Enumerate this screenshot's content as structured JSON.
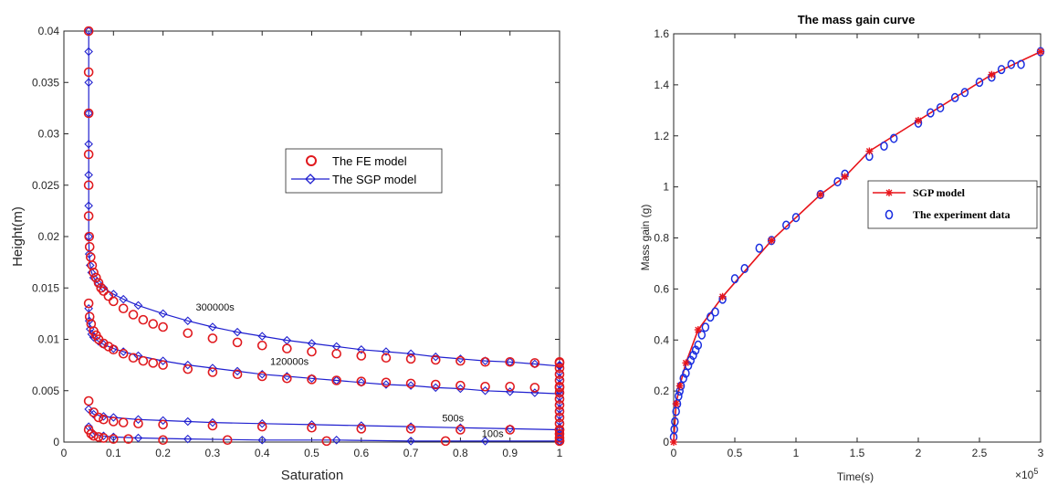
{
  "chart_data": [
    {
      "type": "line",
      "title": "",
      "xlabel": "Saturation",
      "ylabel": "Height(m)",
      "xlim": [
        0,
        1
      ],
      "ylim": [
        0,
        0.04
      ],
      "xticks": [
        "0",
        "0.1",
        "0.2",
        "0.3",
        "0.4",
        "0.5",
        "0.6",
        "0.7",
        "0.8",
        "0.9",
        "1"
      ],
      "yticks": [
        "0",
        "0.005",
        "0.01",
        "0.015",
        "0.02",
        "0.025",
        "0.03",
        "0.035",
        "0.04"
      ],
      "grid": false,
      "legend": {
        "position": "center-right",
        "entries": [
          "The FE model",
          "The SGP model"
        ]
      },
      "annotations": [
        {
          "text": "300000s",
          "x": 0.305,
          "y": 0.0128
        },
        {
          "text": "120000s",
          "x": 0.455,
          "y": 0.0075
        },
        {
          "text": "500s",
          "x": 0.785,
          "y": 0.002
        },
        {
          "text": "100s",
          "x": 0.865,
          "y": 0.0005
        }
      ],
      "series": [
        {
          "name": "The FE model",
          "color": "#e0191e",
          "marker": "circle",
          "curves": [
            {
              "x": [
                0.05,
                0.05,
                0.05,
                0.05,
                0.05,
                0.05,
                0.051,
                0.052,
                0.054,
                0.057,
                0.06,
                0.065,
                0.07,
                0.075,
                0.08,
                0.09,
                0.1,
                0.12,
                0.14,
                0.16,
                0.18,
                0.2,
                0.25,
                0.3,
                0.35,
                0.4,
                0.45,
                0.5,
                0.55,
                0.6,
                0.65,
                0.7,
                0.75,
                0.8,
                0.85,
                0.9,
                0.95,
                1.0
              ],
              "y": [
                0.04,
                0.036,
                0.032,
                0.028,
                0.025,
                0.022,
                0.02,
                0.019,
                0.018,
                0.0172,
                0.0165,
                0.016,
                0.0155,
                0.015,
                0.0147,
                0.0142,
                0.0137,
                0.013,
                0.0124,
                0.0119,
                0.0115,
                0.0112,
                0.0106,
                0.0101,
                0.0097,
                0.0094,
                0.0091,
                0.0088,
                0.0086,
                0.0084,
                0.0082,
                0.0081,
                0.008,
                0.0079,
                0.0078,
                0.0078,
                0.0077,
                0.0077
              ]
            },
            {
              "x": [
                0.05,
                0.052,
                0.055,
                0.06,
                0.065,
                0.07,
                0.08,
                0.09,
                0.1,
                0.12,
                0.14,
                0.16,
                0.18,
                0.2,
                0.25,
                0.3,
                0.35,
                0.4,
                0.45,
                0.5,
                0.55,
                0.6,
                0.65,
                0.7,
                0.75,
                0.8,
                0.85,
                0.9,
                0.95,
                1.0
              ],
              "y": [
                0.0135,
                0.0122,
                0.0115,
                0.0108,
                0.0104,
                0.01,
                0.0096,
                0.0093,
                0.009,
                0.0086,
                0.0082,
                0.0079,
                0.0077,
                0.0075,
                0.0071,
                0.0068,
                0.0066,
                0.0064,
                0.0062,
                0.0061,
                0.006,
                0.0059,
                0.0058,
                0.0057,
                0.0056,
                0.0055,
                0.0054,
                0.0054,
                0.0053,
                0.0053
              ]
            },
            {
              "x": [
                0.05,
                0.06,
                0.07,
                0.08,
                0.1,
                0.12,
                0.15,
                0.2,
                0.3,
                0.4,
                0.5,
                0.6,
                0.7,
                0.8,
                0.9,
                1.0
              ],
              "y": [
                0.004,
                0.0029,
                0.0024,
                0.0022,
                0.002,
                0.0019,
                0.0018,
                0.0017,
                0.0016,
                0.0015,
                0.0014,
                0.0013,
                0.0013,
                0.0012,
                0.0012,
                0.0012
              ]
            },
            {
              "x": [
                0.05,
                0.055,
                0.06,
                0.07,
                0.08,
                0.1,
                0.13,
                0.2,
                0.33,
                0.53,
                0.77,
                1.0
              ],
              "y": [
                0.0012,
                0.0008,
                0.0006,
                0.0005,
                0.0004,
                0.0003,
                0.0003,
                0.0002,
                0.0002,
                0.0001,
                0.0001,
                0.0001
              ]
            },
            {
              "x": [
                1,
                1,
                1,
                1,
                1,
                1,
                1,
                1,
                1,
                1,
                1,
                1,
                1,
                1,
                1
              ],
              "y": [
                0.0078,
                0.0072,
                0.0066,
                0.006,
                0.0054,
                0.0048,
                0.0042,
                0.0036,
                0.003,
                0.0024,
                0.0018,
                0.0012,
                0.0008,
                0.0004,
                0.0001
              ]
            }
          ]
        },
        {
          "name": "The SGP model",
          "color": "#1f1fcf",
          "marker": "diamond",
          "curves": [
            {
              "x": [
                0.05,
                0.05,
                0.05,
                0.05,
                0.05,
                0.05,
                0.05,
                0.05,
                0.051,
                0.053,
                0.056,
                0.06,
                0.07,
                0.08,
                0.1,
                0.12,
                0.15,
                0.2,
                0.25,
                0.3,
                0.35,
                0.4,
                0.45,
                0.5,
                0.55,
                0.6,
                0.65,
                0.7,
                0.75,
                0.8,
                0.85,
                0.9,
                0.95,
                1.0
              ],
              "y": [
                0.04,
                0.038,
                0.035,
                0.032,
                0.029,
                0.026,
                0.023,
                0.02,
                0.0183,
                0.0172,
                0.0165,
                0.016,
                0.0154,
                0.015,
                0.0144,
                0.0139,
                0.0133,
                0.0125,
                0.0118,
                0.0112,
                0.0107,
                0.0103,
                0.0099,
                0.0096,
                0.0093,
                0.009,
                0.0088,
                0.0086,
                0.0083,
                0.0081,
                0.0079,
                0.0078,
                0.0076,
                0.0074
              ]
            },
            {
              "x": [
                0.05,
                0.051,
                0.053,
                0.056,
                0.06,
                0.07,
                0.08,
                0.1,
                0.12,
                0.15,
                0.2,
                0.25,
                0.3,
                0.35,
                0.4,
                0.45,
                0.5,
                0.55,
                0.6,
                0.65,
                0.7,
                0.75,
                0.8,
                0.85,
                0.9,
                0.95,
                1.0
              ],
              "y": [
                0.013,
                0.0118,
                0.011,
                0.0105,
                0.0102,
                0.0098,
                0.0095,
                0.0091,
                0.0088,
                0.0084,
                0.0079,
                0.0075,
                0.0072,
                0.0069,
                0.0066,
                0.0064,
                0.0062,
                0.006,
                0.0058,
                0.0056,
                0.0055,
                0.0053,
                0.0052,
                0.005,
                0.0049,
                0.0048,
                0.0047
              ]
            },
            {
              "x": [
                0.05,
                0.06,
                0.08,
                0.1,
                0.15,
                0.2,
                0.25,
                0.3,
                0.4,
                0.5,
                0.6,
                0.7,
                0.8,
                0.9,
                1.0
              ],
              "y": [
                0.0032,
                0.0027,
                0.0025,
                0.0024,
                0.0022,
                0.0021,
                0.002,
                0.0019,
                0.0018,
                0.0017,
                0.0016,
                0.0015,
                0.0014,
                0.0013,
                0.0012
              ]
            },
            {
              "x": [
                0.05,
                0.06,
                0.08,
                0.1,
                0.15,
                0.25,
                0.4,
                0.55,
                0.7,
                0.85,
                1.0
              ],
              "y": [
                0.0015,
                0.0008,
                0.0006,
                0.0005,
                0.0004,
                0.0003,
                0.0002,
                0.0002,
                0.0001,
                0.0001,
                0.0001
              ]
            },
            {
              "x": [
                1,
                1,
                1,
                1,
                1,
                1,
                1,
                1,
                1,
                1,
                1,
                1,
                1,
                1
              ],
              "y": [
                0.0075,
                0.0068,
                0.0062,
                0.0056,
                0.005,
                0.0044,
                0.0038,
                0.0032,
                0.0026,
                0.002,
                0.0014,
                0.0008,
                0.0004,
                0.0001
              ]
            }
          ]
        }
      ]
    },
    {
      "type": "line",
      "title": "The mass gain curve",
      "xlabel": "Time(s)",
      "ylabel": "Mass gain (g)",
      "x_multiplier": "×10",
      "x_multiplier_exp": "5",
      "xlim": [
        0,
        3
      ],
      "ylim": [
        0,
        1.6
      ],
      "xticks": [
        "0",
        "0.5",
        "1",
        "1.5",
        "2",
        "2.5",
        "3"
      ],
      "yticks": [
        "0",
        "0.2",
        "0.4",
        "0.6",
        "0.8",
        "1",
        "1.2",
        "1.4",
        "1.6"
      ],
      "grid": false,
      "legend": {
        "position": "right",
        "entries": [
          "SGP model",
          "The experiment data"
        ]
      },
      "series": [
        {
          "name": "SGP model",
          "color": "#e8141a",
          "marker": "star",
          "x": [
            0,
            0.02,
            0.05,
            0.1,
            0.2,
            0.4,
            0.8,
            1.2,
            1.4,
            1.6,
            2.0,
            2.6,
            3.0
          ],
          "y": [
            0,
            0.15,
            0.22,
            0.31,
            0.44,
            0.57,
            0.79,
            0.97,
            1.04,
            1.14,
            1.26,
            1.44,
            1.53
          ]
        },
        {
          "name": "The experiment data",
          "color": "#1a2ee0",
          "marker": "circle",
          "x": [
            0,
            0.005,
            0.01,
            0.02,
            0.03,
            0.04,
            0.05,
            0.06,
            0.08,
            0.1,
            0.12,
            0.14,
            0.16,
            0.18,
            0.2,
            0.23,
            0.26,
            0.3,
            0.34,
            0.4,
            0.5,
            0.58,
            0.7,
            0.8,
            0.92,
            1.0,
            1.2,
            1.34,
            1.4,
            1.6,
            1.72,
            1.8,
            2.0,
            2.1,
            2.18,
            2.3,
            2.38,
            2.5,
            2.6,
            2.68,
            2.76,
            2.84,
            3.0
          ],
          "y": [
            0.02,
            0.05,
            0.08,
            0.12,
            0.15,
            0.18,
            0.2,
            0.22,
            0.25,
            0.27,
            0.3,
            0.32,
            0.34,
            0.36,
            0.38,
            0.42,
            0.45,
            0.49,
            0.51,
            0.56,
            0.64,
            0.68,
            0.76,
            0.79,
            0.85,
            0.88,
            0.97,
            1.02,
            1.05,
            1.12,
            1.16,
            1.19,
            1.25,
            1.29,
            1.31,
            1.35,
            1.37,
            1.41,
            1.43,
            1.46,
            1.48,
            1.48,
            1.53
          ]
        }
      ]
    }
  ]
}
